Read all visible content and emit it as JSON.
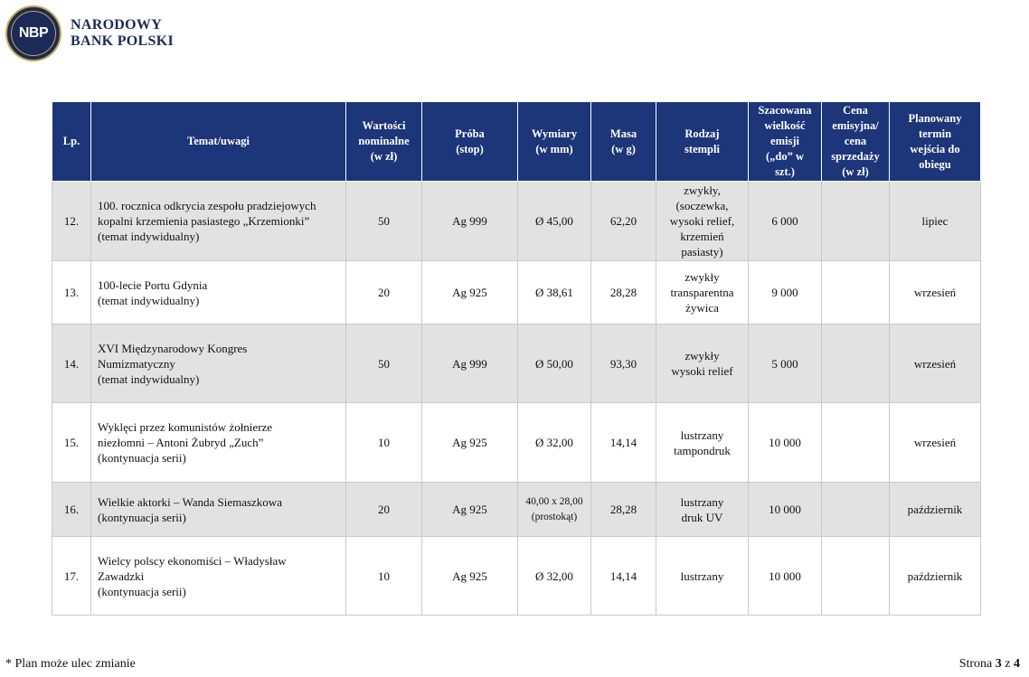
{
  "header": {
    "logo_text": "NBP",
    "brand_line1": "NARODOWY",
    "brand_line2": "BANK POLSKI"
  },
  "table": {
    "columns": [
      "Lp.",
      "Temat/uwagi",
      "Wartości\nnominalne\n(w zł)",
      "Próba\n(stop)",
      "Wymiary\n(w mm)",
      "Masa\n(w g)",
      "Rodzaj\nstempli",
      "Szacowana\nwielkość\nemisji\n(„do” w\nszt.)",
      "Cena\nemisyjna/\ncena\nsprzedaży\n(w zł)",
      "Planowany\ntermin\nwejścia do\nobiegu"
    ],
    "rows": [
      {
        "lp": "12.",
        "theme": "100. rocznica odkrycia zespołu pradziejowych\nkopalni krzemienia pasiastego „Krzemionki”\n(temat indywidualny)",
        "nominal": "50",
        "alloy": "Ag 999",
        "dimensions": "Ø 45,00",
        "mass": "62,20",
        "dies": "zwykły,\n(soczewka,\nwysoki relief,\nkrzemień\npasiasty)",
        "mintage": "6 000",
        "price": "",
        "date": "lipiec"
      },
      {
        "lp": "13.",
        "theme": "100-lecie Portu Gdynia\n(temat indywidualny)",
        "nominal": "20",
        "alloy": "Ag 925",
        "dimensions": "Ø 38,61",
        "mass": "28,28",
        "dies": "zwykły\ntransparentna\nżywica",
        "mintage": "9 000",
        "price": "",
        "date": "wrzesień"
      },
      {
        "lp": "14.",
        "theme": "XVI Międzynarodowy Kongres\nNumizmatyczny\n(temat indywidualny)",
        "nominal": "50",
        "alloy": "Ag 999",
        "dimensions": "Ø 50,00",
        "mass": "93,30",
        "dies": "zwykły\nwysoki relief",
        "mintage": "5 000",
        "price": "",
        "date": "wrzesień"
      },
      {
        "lp": "15.",
        "theme": "Wyklęci przez komunistów żołnierze\nniezłomni – Antoni Żubryd „Zuch”\n(kontynuacja serii)",
        "nominal": "10",
        "alloy": "Ag 925",
        "dimensions": "Ø 32,00",
        "mass": "14,14",
        "dies": "lustrzany\ntampondruk",
        "mintage": "10 000",
        "price": "",
        "date": "wrzesień"
      },
      {
        "lp": "16.",
        "theme": "Wielkie aktorki – Wanda Siemaszkowa\n(kontynuacja serii)",
        "nominal": "20",
        "alloy": "Ag 925",
        "dimensions": "40,00 x 28,00\n(prostokąt)",
        "mass": "28,28",
        "dies": "lustrzany\ndruk UV",
        "mintage": "10 000",
        "price": "",
        "date": "październik"
      },
      {
        "lp": "17.",
        "theme": "Wielcy polscy ekonomiści – Władysław\nZawadzki\n(kontynuacja serii)",
        "nominal": "10",
        "alloy": "Ag 925",
        "dimensions": "Ø 32,00",
        "mass": "14,14",
        "dies": "lustrzany",
        "mintage": "10 000",
        "price": "",
        "date": "październik"
      }
    ]
  },
  "footer": {
    "note": "* Plan może ulec zmianie",
    "page_prefix": "Strona",
    "page_current": "3",
    "page_sep": "z",
    "page_total": "4"
  },
  "colors": {
    "header_bg": "#1d3579",
    "shaded_row": "#e2e2e2",
    "logo_navy": "#1b2a57",
    "logo_gold": "#c9a94e"
  }
}
